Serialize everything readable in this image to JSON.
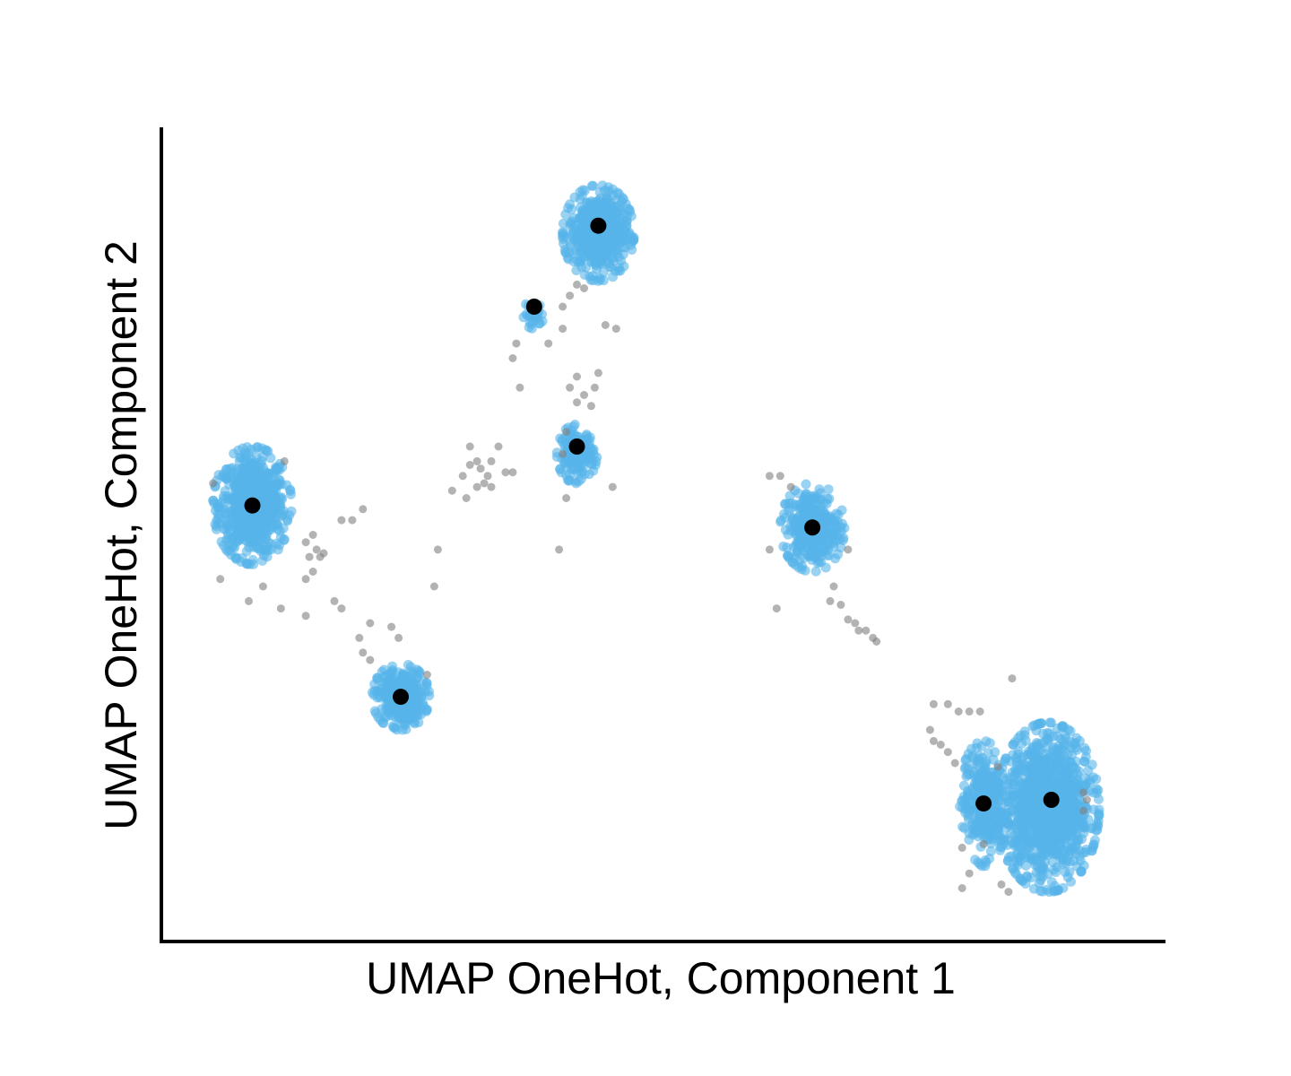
{
  "chart_data": {
    "type": "scatter",
    "title": "",
    "xlabel": "UMAP OneHot, Component 1",
    "ylabel": "UMAP OneHot, Component 2",
    "xlim": [
      0,
      14
    ],
    "ylim": [
      0,
      11
    ],
    "ticks_shown": false,
    "grid": false,
    "legend": "none",
    "colors": {
      "clustered": "#56b4e9",
      "noise": "#808080",
      "centroid": "#000000",
      "axis": "#000000"
    },
    "clusters": [
      {
        "center": [
          1.25,
          5.9
        ],
        "spread": [
          0.55,
          0.8
        ],
        "count": 700
      },
      {
        "center": [
          3.33,
          3.3
        ],
        "spread": [
          0.4,
          0.45
        ],
        "count": 320
      },
      {
        "center": [
          5.2,
          8.5
        ],
        "spread": [
          0.16,
          0.2
        ],
        "count": 40
      },
      {
        "center": [
          5.8,
          6.6
        ],
        "spread": [
          0.28,
          0.4
        ],
        "count": 150
      },
      {
        "center": [
          6.1,
          9.6
        ],
        "spread": [
          0.5,
          0.65
        ],
        "count": 520
      },
      {
        "center": [
          9.1,
          5.6
        ],
        "spread": [
          0.45,
          0.6
        ],
        "count": 350
      },
      {
        "center": [
          11.5,
          1.85
        ],
        "spread": [
          0.35,
          0.85
        ],
        "count": 320
      },
      {
        "center": [
          12.4,
          1.8
        ],
        "spread": [
          0.72,
          1.15
        ],
        "count": 1100
      }
    ],
    "centroids": [
      {
        "x": 1.25,
        "y": 5.9
      },
      {
        "x": 3.33,
        "y": 3.3
      },
      {
        "x": 5.2,
        "y": 8.6
      },
      {
        "x": 5.8,
        "y": 6.7
      },
      {
        "x": 6.1,
        "y": 9.7
      },
      {
        "x": 9.1,
        "y": 5.6
      },
      {
        "x": 11.5,
        "y": 1.85
      },
      {
        "x": 12.45,
        "y": 1.9
      }
    ],
    "noise_points": [
      [
        1.7,
        6.5
      ],
      [
        0.7,
        6.2
      ],
      [
        1.4,
        4.8
      ],
      [
        0.8,
        4.9
      ],
      [
        1.2,
        4.6
      ],
      [
        1.65,
        4.5
      ],
      [
        2.0,
        5.4
      ],
      [
        2.1,
        5.5
      ],
      [
        2.15,
        5.3
      ],
      [
        2.2,
        5.2
      ],
      [
        2.05,
        5.2
      ],
      [
        2.25,
        5.25
      ],
      [
        2.1,
        5.0
      ],
      [
        2.0,
        4.9
      ],
      [
        2.5,
        5.7
      ],
      [
        2.65,
        5.7
      ],
      [
        2.8,
        5.85
      ],
      [
        2.0,
        4.4
      ],
      [
        2.4,
        4.6
      ],
      [
        2.5,
        4.5
      ],
      [
        2.9,
        4.3
      ],
      [
        2.75,
        4.1
      ],
      [
        2.8,
        3.9
      ],
      [
        2.9,
        3.8
      ],
      [
        3.2,
        4.25
      ],
      [
        3.3,
        4.1
      ],
      [
        3.7,
        3.6
      ],
      [
        3.85,
        5.3
      ],
      [
        3.8,
        4.8
      ],
      [
        4.05,
        6.1
      ],
      [
        4.2,
        6.3
      ],
      [
        4.25,
        6.0
      ],
      [
        4.3,
        6.7
      ],
      [
        4.4,
        6.5
      ],
      [
        4.45,
        6.4
      ],
      [
        4.5,
        6.2
      ],
      [
        4.6,
        6.5
      ],
      [
        4.55,
        6.3
      ],
      [
        4.4,
        6.15
      ],
      [
        4.7,
        6.7
      ],
      [
        4.8,
        6.35
      ],
      [
        4.3,
        6.45
      ],
      [
        4.6,
        6.15
      ],
      [
        4.9,
        6.35
      ],
      [
        4.95,
        8.1
      ],
      [
        4.9,
        7.9
      ],
      [
        5.0,
        7.5
      ],
      [
        5.4,
        8.1
      ],
      [
        5.6,
        8.6
      ],
      [
        5.6,
        8.3
      ],
      [
        5.7,
        8.75
      ],
      [
        5.8,
        8.9
      ],
      [
        5.9,
        8.85
      ],
      [
        5.65,
        6.9
      ],
      [
        5.8,
        7.3
      ],
      [
        5.9,
        7.4
      ],
      [
        6.0,
        7.25
      ],
      [
        6.05,
        7.5
      ],
      [
        6.1,
        7.7
      ],
      [
        5.7,
        7.5
      ],
      [
        5.8,
        7.65
      ],
      [
        5.6,
        6.6
      ],
      [
        5.65,
        6.0
      ],
      [
        6.3,
        6.15
      ],
      [
        5.55,
        5.3
      ],
      [
        6.2,
        8.35
      ],
      [
        6.35,
        8.3
      ],
      [
        8.5,
        6.3
      ],
      [
        8.65,
        6.3
      ],
      [
        8.8,
        6.15
      ],
      [
        8.5,
        5.3
      ],
      [
        8.6,
        4.5
      ],
      [
        9.6,
        5.3
      ],
      [
        9.4,
        4.8
      ],
      [
        9.35,
        4.6
      ],
      [
        9.5,
        4.55
      ],
      [
        9.6,
        4.35
      ],
      [
        9.7,
        4.3
      ],
      [
        9.75,
        4.2
      ],
      [
        9.85,
        4.2
      ],
      [
        9.95,
        4.1
      ],
      [
        10.0,
        4.05
      ],
      [
        10.8,
        3.2
      ],
      [
        11.0,
        3.2
      ],
      [
        11.15,
        3.1
      ],
      [
        11.3,
        3.1
      ],
      [
        11.45,
        3.1
      ],
      [
        10.75,
        2.85
      ],
      [
        10.8,
        2.7
      ],
      [
        10.9,
        2.65
      ],
      [
        11.0,
        2.55
      ],
      [
        11.1,
        2.4
      ],
      [
        11.9,
        3.55
      ],
      [
        12.9,
        2.0
      ],
      [
        12.95,
        1.9
      ],
      [
        12.9,
        1.75
      ],
      [
        11.2,
        1.25
      ],
      [
        11.5,
        1.3
      ],
      [
        11.3,
        0.9
      ],
      [
        11.2,
        0.7
      ],
      [
        11.75,
        0.75
      ],
      [
        11.85,
        0.65
      ],
      [
        11.7,
        2.35
      ]
    ]
  }
}
